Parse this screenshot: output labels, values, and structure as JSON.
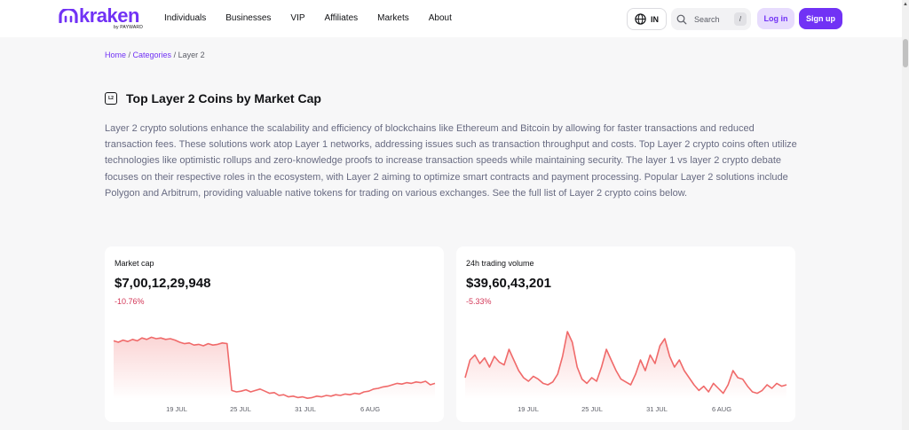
{
  "header": {
    "logo_text": "kraken",
    "logo_sub": "by PAYWARD",
    "nav": [
      "Individuals",
      "Businesses",
      "VIP",
      "Affiliates",
      "Markets",
      "About"
    ],
    "language": "IN",
    "search_placeholder": "Search",
    "search_shortcut": "/",
    "login_label": "Log in",
    "signup_label": "Sign up"
  },
  "breadcrumb": {
    "home": "Home",
    "sep1": " / ",
    "categories": "Categories",
    "sep2": " / ",
    "current": "Layer 2"
  },
  "page": {
    "icon_text": "L2",
    "title": "Top Layer 2 Coins by Market Cap",
    "description": "Layer 2 crypto solutions enhance the scalability and efficiency of blockchains like Ethereum and Bitcoin by allowing for faster transactions and reduced transaction fees. These solutions work atop Layer 1 networks, addressing issues such as transaction throughput and costs. Top Layer 2 crypto coins often utilize technologies like optimistic rollups and zero-knowledge proofs to increase transaction speeds while maintaining security. The layer 1 vs layer 2 crypto debate focuses on their respective roles in the ecosystem, with Layer 2 aiming to optimize smart contracts and payment processing. Popular Layer 2 solutions include Polygon and Arbitrum, providing valuable native tokens for trading on various exchanges. See the full list of Layer 2 crypto coins below."
  },
  "colors": {
    "brand": "#7132f5",
    "negative": "#d33757",
    "chart_line": "#f06a6a"
  },
  "cards": [
    {
      "label": "Market cap",
      "value": "$7,00,12,29,948",
      "change": "-10.76%",
      "x_ticks": [
        "19 JUL",
        "25 JUL",
        "31 JUL",
        "6 AUG"
      ]
    },
    {
      "label": "24h trading volume",
      "value": "$39,60,43,201",
      "change": "-5.33%",
      "x_ticks": [
        "19 JUL",
        "25 JUL",
        "31 JUL",
        "6 AUG"
      ]
    }
  ],
  "chart_data": [
    {
      "type": "area",
      "title": "Market cap",
      "x_ticks": [
        "19 JUL",
        "25 JUL",
        "31 JUL",
        "6 AUG"
      ],
      "y_relative": [
        0.82,
        0.8,
        0.83,
        0.81,
        0.84,
        0.82,
        0.86,
        0.84,
        0.87,
        0.85,
        0.86,
        0.84,
        0.85,
        0.83,
        0.8,
        0.78,
        0.79,
        0.76,
        0.77,
        0.75,
        0.78,
        0.76,
        0.77,
        0.79,
        0.78,
        0.12,
        0.1,
        0.11,
        0.13,
        0.1,
        0.12,
        0.14,
        0.11,
        0.08,
        0.09,
        0.05,
        0.06,
        0.03,
        0.04,
        0.02,
        0.03,
        0.01,
        0.02,
        0.04,
        0.03,
        0.05,
        0.04,
        0.06,
        0.05,
        0.07,
        0.06,
        0.08,
        0.07,
        0.1,
        0.11,
        0.14,
        0.15,
        0.17,
        0.18,
        0.2,
        0.22,
        0.21,
        0.23,
        0.22,
        0.24,
        0.23,
        0.25,
        0.2,
        0.22
      ]
    },
    {
      "type": "area",
      "title": "24h trading volume",
      "x_ticks": [
        "19 JUL",
        "25 JUL",
        "31 JUL",
        "6 AUG"
      ],
      "y_relative": [
        0.3,
        0.55,
        0.62,
        0.5,
        0.58,
        0.45,
        0.6,
        0.52,
        0.48,
        0.7,
        0.55,
        0.4,
        0.3,
        0.25,
        0.32,
        0.28,
        0.22,
        0.2,
        0.24,
        0.35,
        0.6,
        0.95,
        0.8,
        0.45,
        0.28,
        0.22,
        0.3,
        0.25,
        0.45,
        0.7,
        0.55,
        0.4,
        0.28,
        0.24,
        0.2,
        0.35,
        0.55,
        0.4,
        0.62,
        0.5,
        0.75,
        0.85,
        0.6,
        0.45,
        0.55,
        0.4,
        0.3,
        0.2,
        0.12,
        0.18,
        0.1,
        0.22,
        0.15,
        0.08,
        0.2,
        0.4,
        0.3,
        0.28,
        0.18,
        0.1,
        0.08,
        0.12,
        0.2,
        0.15,
        0.22,
        0.18,
        0.2
      ]
    }
  ]
}
